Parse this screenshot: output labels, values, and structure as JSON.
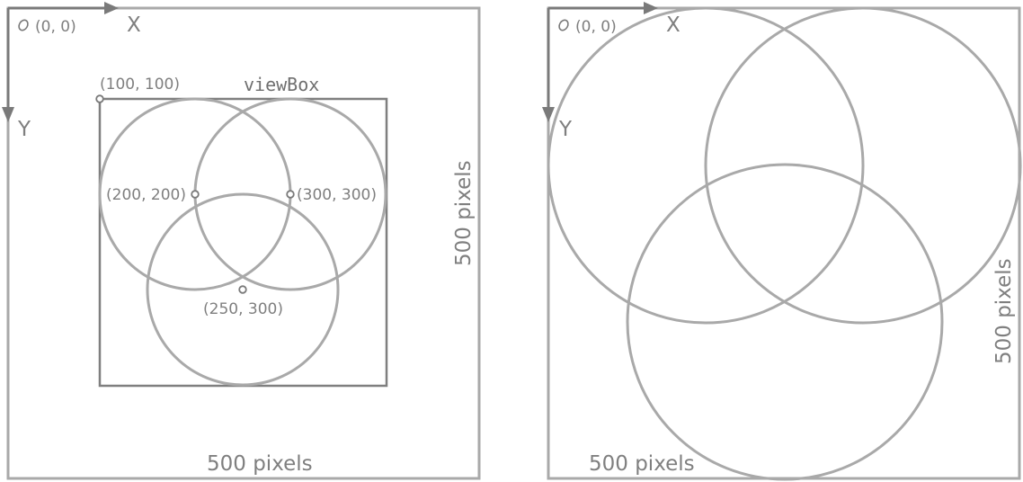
{
  "left_panel": {
    "origin_label": "(0, 0)",
    "x_axis_label": "X",
    "y_axis_label": "Y",
    "viewbox_label": "viewBox",
    "viewbox_origin_label": "(100, 100)",
    "width_label": "500 pixels",
    "height_label": "500 pixels",
    "point_labels": {
      "p1": "(200, 200)",
      "p2": "(300, 300)",
      "p3": "(250, 300)"
    }
  },
  "right_panel": {
    "origin_label": "(0, 0)",
    "x_axis_label": "X",
    "y_axis_label": "Y",
    "width_label": "500 pixels",
    "height_label": "500 pixels"
  }
}
